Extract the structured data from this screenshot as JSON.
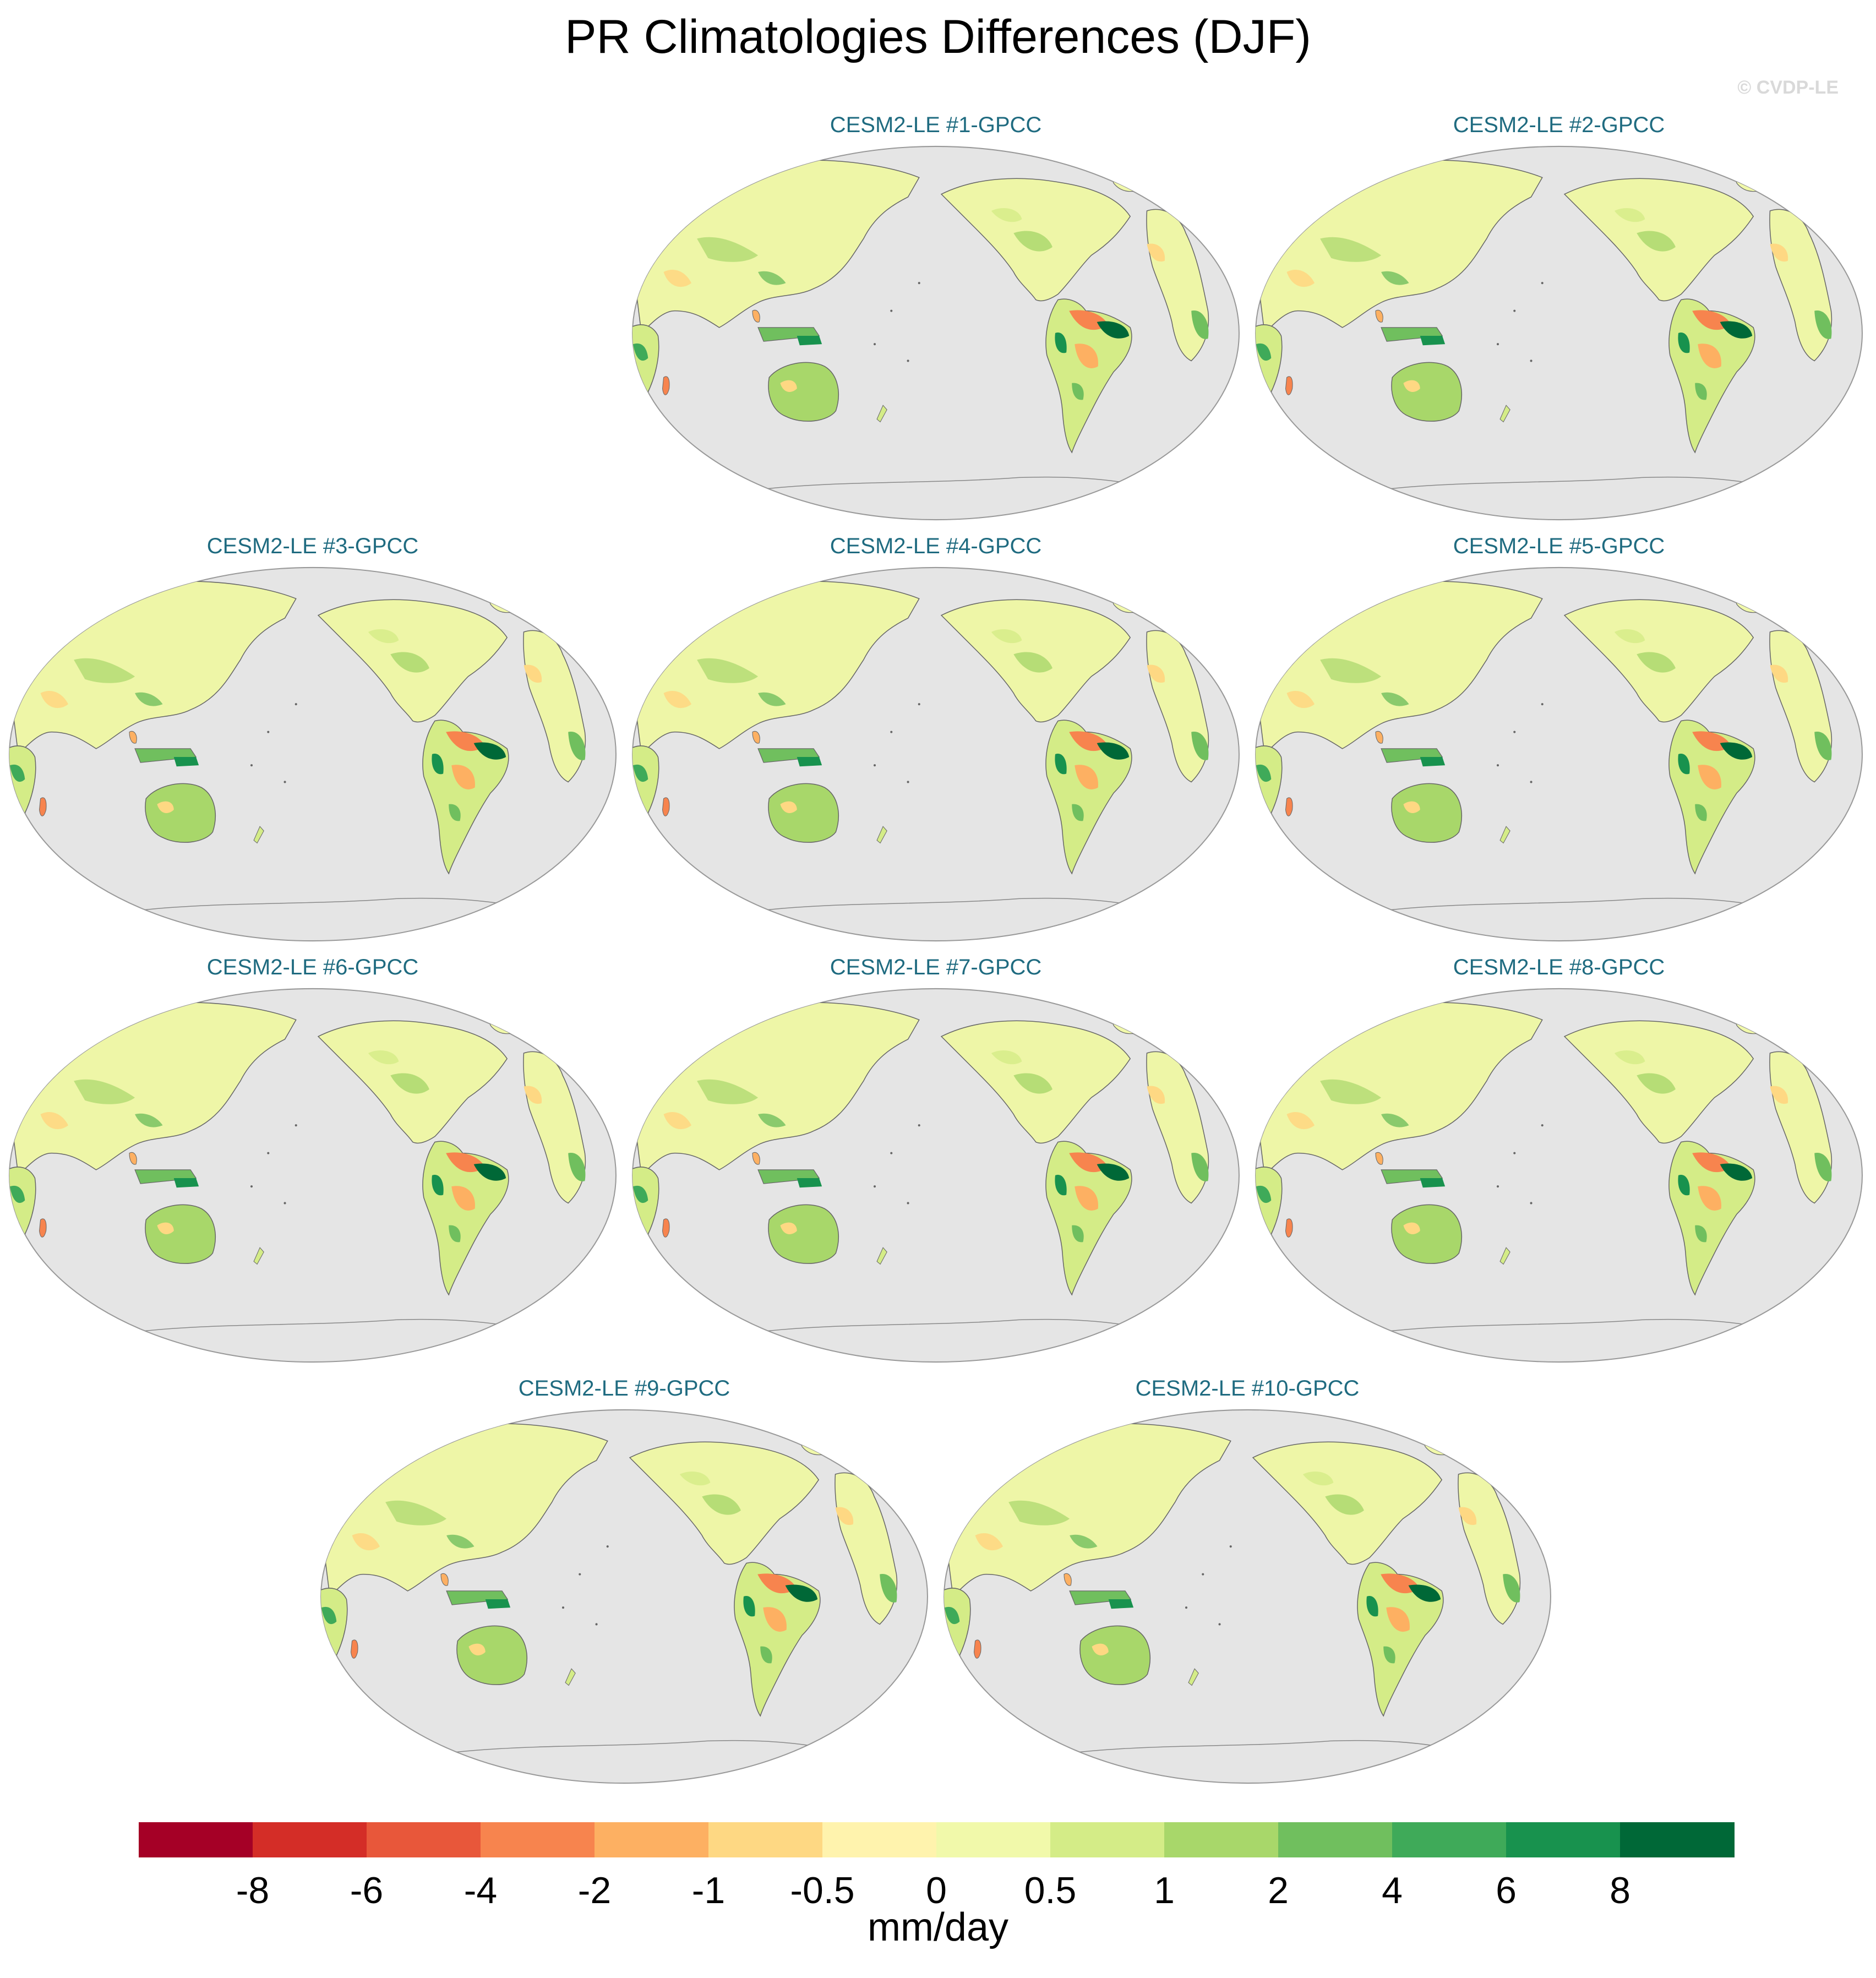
{
  "title": "PR Climatologies Differences (DJF)",
  "watermark": "© CVDP-LE",
  "panels": [
    {
      "label": "CESM2-LE #1-GPCC"
    },
    {
      "label": "CESM2-LE #2-GPCC"
    },
    {
      "label": "CESM2-LE #3-GPCC"
    },
    {
      "label": "CESM2-LE #4-GPCC"
    },
    {
      "label": "CESM2-LE #5-GPCC"
    },
    {
      "label": "CESM2-LE #6-GPCC"
    },
    {
      "label": "CESM2-LE #7-GPCC"
    },
    {
      "label": "CESM2-LE #8-GPCC"
    },
    {
      "label": "CESM2-LE #9-GPCC"
    },
    {
      "label": "CESM2-LE #10-GPCC"
    }
  ],
  "colorbar": {
    "units": "mm/day",
    "tick_labels": [
      "-8",
      "-6",
      "-4",
      "-2",
      "-1",
      "-0.5",
      "0",
      "0.5",
      "1",
      "2",
      "4",
      "6",
      "8"
    ],
    "colors": [
      "#a50026",
      "#d42d27",
      "#e8573a",
      "#f7844e",
      "#fdb062",
      "#fed883",
      "#fff3ad",
      "#f1f9aa",
      "#d4ec87",
      "#a8d76a",
      "#70bf5e",
      "#3faa59",
      "#18924e",
      "#006837"
    ]
  },
  "map_colors": {
    "ocean": "#e5e5e5",
    "land_base": "#eef6a7",
    "coast": "#666666"
  }
}
